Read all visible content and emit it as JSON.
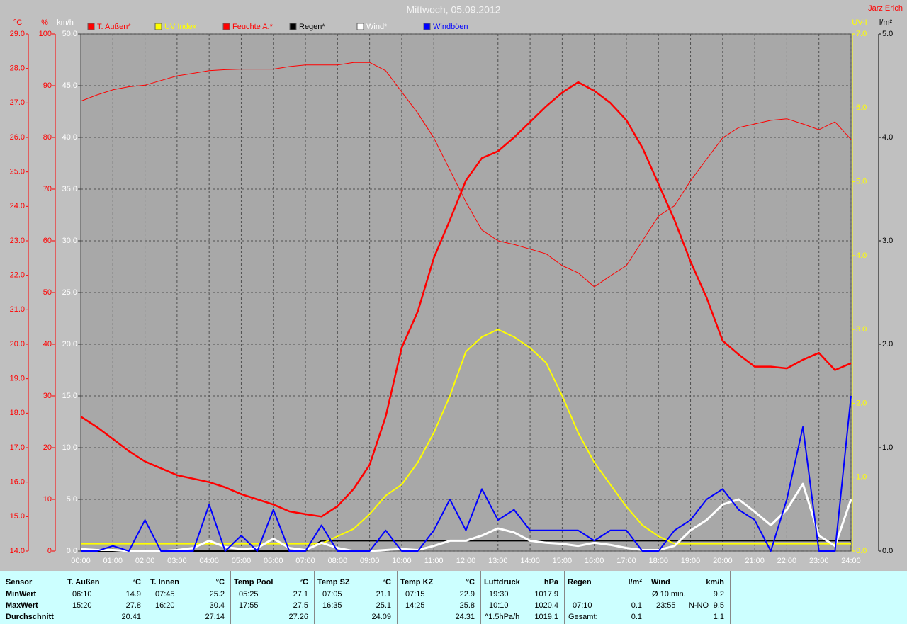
{
  "chart_data": {
    "type": "line",
    "title": "Mittwoch, 05.09.2012",
    "author": "Jarz Erich",
    "xlim": [
      0,
      24
    ],
    "xticks": [
      {
        "value": 0,
        "label": "00:00"
      },
      {
        "value": 1,
        "label": "01:00"
      },
      {
        "value": 2,
        "label": "02:00"
      },
      {
        "value": 3,
        "label": "03:00"
      },
      {
        "value": 4,
        "label": "04:00"
      },
      {
        "value": 5,
        "label": "05:00"
      },
      {
        "value": 6,
        "label": "06:00"
      },
      {
        "value": 7,
        "label": "07:00"
      },
      {
        "value": 8,
        "label": "08:00"
      },
      {
        "value": 9,
        "label": "09:00"
      },
      {
        "value": 10,
        "label": "10:00"
      },
      {
        "value": 11,
        "label": "11:00"
      },
      {
        "value": 12,
        "label": "12:00"
      },
      {
        "value": 13,
        "label": "13:00"
      },
      {
        "value": 14,
        "label": "14:00"
      },
      {
        "value": 15,
        "label": "15:00"
      },
      {
        "value": 16,
        "label": "16:00"
      },
      {
        "value": 17,
        "label": "17:00"
      },
      {
        "value": 18,
        "label": "18:00"
      },
      {
        "value": 19,
        "label": "19:00"
      },
      {
        "value": 20,
        "label": "20:00"
      },
      {
        "value": 21,
        "label": "21:00"
      },
      {
        "value": 22,
        "label": "22:00"
      },
      {
        "value": 23,
        "label": "23:00"
      },
      {
        "value": 24,
        "label": "24:00"
      }
    ],
    "axes": [
      {
        "unit": "°C",
        "color": "#ff0000",
        "lim": [
          14,
          29
        ],
        "ticks": [
          {
            "value": 14,
            "label": "14.0"
          },
          {
            "value": 15,
            "label": "15.0"
          },
          {
            "value": 16,
            "label": "16.0"
          },
          {
            "value": 17,
            "label": "17.0"
          },
          {
            "value": 18,
            "label": "18.0"
          },
          {
            "value": 19,
            "label": "19.0"
          },
          {
            "value": 20,
            "label": "20.0"
          },
          {
            "value": 21,
            "label": "21.0"
          },
          {
            "value": 22,
            "label": "22.0"
          },
          {
            "value": 23,
            "label": "23.0"
          },
          {
            "value": 24,
            "label": "24.0"
          },
          {
            "value": 25,
            "label": "25.0"
          },
          {
            "value": 26,
            "label": "26.0"
          },
          {
            "value": 27,
            "label": "27.0"
          },
          {
            "value": 28,
            "label": "28.0"
          },
          {
            "value": 29,
            "label": "29.0"
          }
        ]
      },
      {
        "unit": "%",
        "color": "#ff0000",
        "lim": [
          0,
          100
        ],
        "ticks": [
          0,
          10,
          20,
          30,
          40,
          50,
          60,
          70,
          80,
          90,
          100
        ]
      },
      {
        "unit": "km/h",
        "color": "#ffffff",
        "lim": [
          0,
          50
        ],
        "grid": true,
        "ticks": [
          {
            "value": 0,
            "label": "0.0"
          },
          {
            "value": 5,
            "label": "5.0"
          },
          {
            "value": 10,
            "label": "10.0"
          },
          {
            "value": 15,
            "label": "15.0"
          },
          {
            "value": 20,
            "label": "20.0"
          },
          {
            "value": 25,
            "label": "25.0"
          },
          {
            "value": 30,
            "label": "30.0"
          },
          {
            "value": 35,
            "label": "35.0"
          },
          {
            "value": 40,
            "label": "40.0"
          },
          {
            "value": 45,
            "label": "45.0"
          },
          {
            "value": 50,
            "label": "50.0"
          }
        ]
      },
      {
        "unit": "UV-I",
        "color": "#ffff00",
        "lim": [
          0,
          7
        ],
        "ticks": [
          {
            "value": 0,
            "label": "0.0"
          },
          {
            "value": 1,
            "label": "1.0"
          },
          {
            "value": 2,
            "label": "2.0"
          },
          {
            "value": 3,
            "label": "3.0"
          },
          {
            "value": 4,
            "label": "4.0"
          },
          {
            "value": 5,
            "label": "5.0"
          },
          {
            "value": 6,
            "label": "6.0"
          },
          {
            "value": 7,
            "label": "7.0"
          }
        ]
      },
      {
        "unit": "l/m²",
        "color": "#000000",
        "lim": [
          0,
          5
        ],
        "ticks": [
          {
            "value": 0,
            "label": "0.0"
          },
          {
            "value": 1,
            "label": "1.0"
          },
          {
            "value": 2,
            "label": "2.0"
          },
          {
            "value": 3,
            "label": "3.0"
          },
          {
            "value": 4,
            "label": "4.0"
          },
          {
            "value": 5,
            "label": "5.0"
          }
        ]
      }
    ],
    "x": [
      0,
      0.5,
      1,
      1.5,
      2,
      2.5,
      3,
      3.5,
      4,
      4.5,
      5,
      5.5,
      6,
      6.5,
      7,
      7.5,
      8,
      8.5,
      9,
      9.5,
      10,
      10.5,
      11,
      11.5,
      12,
      12.5,
      13,
      13.5,
      14,
      14.5,
      15,
      15.5,
      16,
      16.5,
      17,
      17.5,
      18,
      18.5,
      19,
      19.5,
      20,
      20.5,
      21,
      21.5,
      22,
      22.5,
      23,
      23.5,
      24
    ],
    "series": [
      {
        "name": "T. Außen*",
        "color": "#ff0000",
        "axis": 0,
        "width": 2.5,
        "values": [
          17.9,
          17.6,
          17.25,
          16.9,
          16.6,
          16.4,
          16.2,
          16.1,
          16.0,
          15.85,
          15.65,
          15.5,
          15.35,
          15.15,
          15.07,
          15.0,
          15.3,
          15.8,
          16.5,
          17.9,
          19.9,
          20.95,
          22.5,
          23.6,
          24.75,
          25.4,
          25.6,
          26.0,
          26.45,
          26.9,
          27.3,
          27.6,
          27.35,
          27.0,
          26.5,
          25.7,
          24.65,
          23.6,
          22.4,
          21.35,
          20.1,
          19.7,
          19.35,
          19.35,
          19.3,
          19.55,
          19.75,
          19.25,
          19.45
        ]
      },
      {
        "name": "UV Index",
        "color": "#ffff00",
        "axis": 3,
        "width": 2,
        "values": [
          0.1,
          0.1,
          0.1,
          0.1,
          0.1,
          0.1,
          0.1,
          0.1,
          0.1,
          0.1,
          0.1,
          0.1,
          0.1,
          0.1,
          0.1,
          0.1,
          0.2,
          0.3,
          0.5,
          0.75,
          0.9,
          1.2,
          1.6,
          2.1,
          2.7,
          2.9,
          3.0,
          2.9,
          2.75,
          2.55,
          2.1,
          1.6,
          1.2,
          0.9,
          0.6,
          0.35,
          0.2,
          0.1,
          0.1,
          0.1,
          0.1,
          0.1,
          0.1,
          0.1,
          0.1,
          0.1,
          0.1,
          0.1,
          0.1
        ]
      },
      {
        "name": "Feuchte A.*",
        "color": "#ff0000",
        "axis": 1,
        "width": 1,
        "values": [
          87.0,
          88.2,
          89.2,
          89.8,
          90.1,
          91.0,
          91.9,
          92.4,
          92.9,
          93.1,
          93.2,
          93.2,
          93.2,
          93.7,
          94.0,
          94.0,
          94.0,
          94.5,
          94.5,
          92.9,
          88.8,
          84.7,
          79.9,
          73.7,
          67.5,
          62.1,
          60.0,
          59.3,
          58.4,
          57.5,
          55.2,
          53.8,
          51.1,
          53.2,
          55.2,
          60.0,
          64.8,
          66.8,
          71.6,
          75.8,
          79.9,
          81.9,
          82.6,
          83.3,
          83.6,
          82.6,
          81.5,
          83.0,
          79.6
        ]
      },
      {
        "name": "Regen*",
        "color": "#000000",
        "axis": 4,
        "width": 2,
        "values": [
          0,
          0,
          0,
          0,
          0,
          0,
          0,
          0,
          0,
          0,
          0,
          0,
          0,
          0,
          0,
          0.1,
          0.1,
          0.1,
          0.1,
          0.1,
          0.1,
          0.1,
          0.1,
          0.1,
          0.1,
          0.1,
          0.1,
          0.1,
          0.1,
          0.1,
          0.1,
          0.1,
          0.1,
          0.1,
          0.1,
          0.1,
          0.1,
          0.1,
          0.1,
          0.1,
          0.1,
          0.1,
          0.1,
          0.1,
          0.1,
          0.1,
          0.1,
          0.1,
          0.1
        ]
      },
      {
        "name": "Wind*",
        "color": "#ffffff",
        "axis": 2,
        "width": 3,
        "values": [
          0.2,
          0.1,
          0.1,
          0,
          0,
          0,
          0.1,
          0.3,
          1.0,
          0.4,
          0.2,
          0.3,
          1.2,
          0.3,
          0.1,
          0.8,
          0.3,
          0,
          0,
          0.1,
          0.2,
          0.1,
          0.5,
          1.0,
          1.0,
          1.5,
          2.2,
          1.8,
          1.0,
          0.8,
          0.7,
          0.5,
          0.8,
          0.6,
          0.3,
          0.1,
          0.1,
          0.5,
          2.0,
          3.0,
          4.5,
          5.0,
          3.8,
          2.5,
          4.0,
          6.5,
          1.5,
          0.5,
          5.0
        ]
      },
      {
        "name": "Windböen",
        "color": "#0000ff",
        "axis": 2,
        "width": 2,
        "values": [
          0,
          0,
          0.5,
          0,
          3,
          0,
          0,
          0,
          4.5,
          0,
          1.5,
          0,
          4,
          0,
          0,
          2.5,
          0,
          0,
          0,
          2,
          0,
          0,
          2,
          5,
          2,
          6,
          3,
          4,
          2,
          2,
          2,
          2,
          1,
          2,
          2,
          0,
          0,
          2,
          3,
          5,
          6,
          4,
          3,
          0,
          5,
          12,
          0,
          0,
          15
        ]
      }
    ]
  },
  "table": {
    "row_labels": [
      "Sensor",
      "MinWert",
      "MaxWert",
      "Durchschnitt"
    ],
    "columns": [
      {
        "name": "T. Außen",
        "unit": "°C",
        "cells": [
          {
            "time": "06:10",
            "value": "14.9"
          },
          {
            "time": "15:20",
            "value": "27.8"
          },
          {
            "value": "20.41"
          }
        ]
      },
      {
        "name": "T. Innen",
        "unit": "°C",
        "cells": [
          {
            "time": "07:45",
            "value": "25.2"
          },
          {
            "time": "16:20",
            "value": "30.4"
          },
          {
            "value": "27.14"
          }
        ]
      },
      {
        "name": "Temp Pool",
        "unit": "°C",
        "cells": [
          {
            "time": "05:25",
            "value": "27.1"
          },
          {
            "time": "17:55",
            "value": "27.5"
          },
          {
            "value": "27.26"
          }
        ]
      },
      {
        "name": "Temp SZ",
        "unit": "°C",
        "cells": [
          {
            "time": "07:05",
            "value": "21.1"
          },
          {
            "time": "16:35",
            "value": "25.1"
          },
          {
            "value": "24.09"
          }
        ]
      },
      {
        "name": "Temp KZ",
        "unit": "°C",
        "cells": [
          {
            "time": "07:15",
            "value": "22.9"
          },
          {
            "time": "14:25",
            "value": "25.8"
          },
          {
            "value": "24.31"
          }
        ]
      },
      {
        "name": "Luftdruck",
        "unit": "hPa",
        "cells": [
          {
            "time": "19:30",
            "value": "1017.9"
          },
          {
            "time": "10:10",
            "value": "1020.4"
          },
          {
            "time": "^1.5hPa/h",
            "value": "1019.1"
          }
        ]
      },
      {
        "name": "Regen",
        "unit": "l/m²",
        "cells": [
          null,
          {
            "time": "07:10",
            "value": "0.1"
          },
          {
            "time": "Gesamt:",
            "value": "0.1"
          }
        ]
      },
      {
        "name": "Wind",
        "unit": "km/h",
        "cells": [
          {
            "time": "Ø 10 min.",
            "value": "9.2"
          },
          {
            "time": "23:55",
            "dir": "N-NO",
            "value": "9.5"
          },
          {
            "value": "1.1"
          }
        ]
      }
    ]
  }
}
